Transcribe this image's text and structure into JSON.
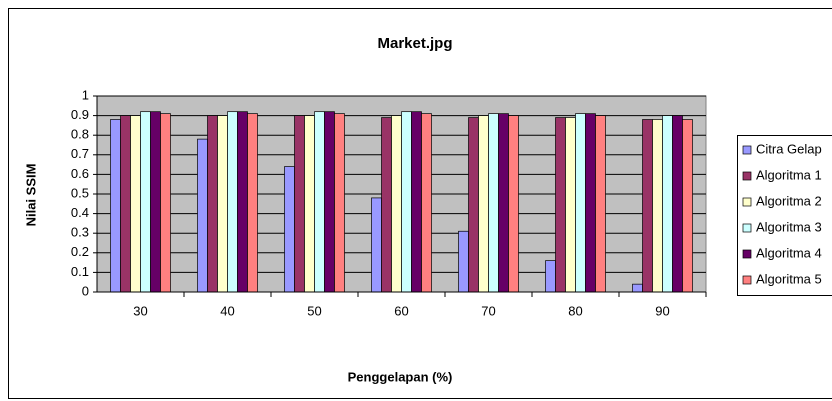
{
  "chart_data": {
    "type": "bar",
    "title": "Market.jpg",
    "x_label": "Penggelapan (%)",
    "y_label": "Nilai SSIM",
    "categories": [
      "30",
      "40",
      "50",
      "60",
      "70",
      "80",
      "90"
    ],
    "series": [
      {
        "name": "Citra Gelap",
        "color": "#9999ff",
        "values": [
          0.88,
          0.78,
          0.64,
          0.48,
          0.31,
          0.16,
          0.04
        ]
      },
      {
        "name": "Algoritma 1",
        "color": "#993366",
        "values": [
          0.9,
          0.9,
          0.9,
          0.89,
          0.89,
          0.89,
          0.88
        ]
      },
      {
        "name": "Algoritma 2",
        "color": "#ffffcc",
        "values": [
          0.9,
          0.9,
          0.9,
          0.9,
          0.9,
          0.89,
          0.88
        ]
      },
      {
        "name": "Algoritma 3",
        "color": "#ccffff",
        "values": [
          0.92,
          0.92,
          0.92,
          0.92,
          0.91,
          0.91,
          0.9
        ]
      },
      {
        "name": "Algoritma 4",
        "color": "#660066",
        "values": [
          0.92,
          0.92,
          0.92,
          0.92,
          0.91,
          0.91,
          0.9
        ]
      },
      {
        "name": "Algoritma 5",
        "color": "#ff8080",
        "values": [
          0.91,
          0.91,
          0.91,
          0.91,
          0.9,
          0.9,
          0.88
        ]
      }
    ],
    "ylim": [
      0,
      1
    ],
    "yticks": [
      0,
      0.1,
      0.2,
      0.3,
      0.4,
      0.5,
      0.6,
      0.7,
      0.8,
      0.9,
      1
    ],
    "grid": true,
    "legend": "right",
    "plot_background": "#c0c0c0"
  }
}
